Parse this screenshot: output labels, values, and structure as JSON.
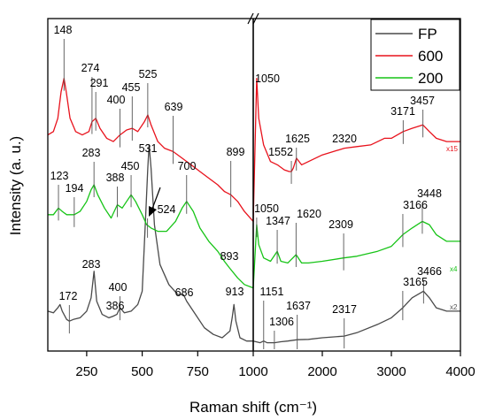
{
  "chart_data": {
    "type": "line",
    "xlabel": "Raman shift (cm⁻¹)",
    "ylabel": "Intensity (a. u.)",
    "x_axis_break": true,
    "x_segments": [
      {
        "xlim": [
          75,
          1000
        ],
        "ticks": [
          250,
          500,
          750,
          1000
        ]
      },
      {
        "xlim": [
          1000,
          4000
        ],
        "ticks": [
          2000,
          3000,
          4000
        ]
      }
    ],
    "ylim": [
      0,
      100
    ],
    "grid": false,
    "legend_position": "top-right",
    "colors": {
      "FP": "#4a4a4a",
      "600": "#e8121c",
      "200": "#17c417"
    },
    "series": [
      {
        "name": "FP",
        "scale_label": "x2",
        "points": [
          [
            75,
            12
          ],
          [
            100,
            11.5
          ],
          [
            120,
            13
          ],
          [
            130,
            14
          ],
          [
            140,
            12
          ],
          [
            160,
            9.5
          ],
          [
            172,
            9
          ],
          [
            190,
            9.5
          ],
          [
            220,
            10
          ],
          [
            250,
            12
          ],
          [
            270,
            16
          ],
          [
            283,
            24
          ],
          [
            295,
            15
          ],
          [
            320,
            11
          ],
          [
            350,
            10
          ],
          [
            370,
            10.5
          ],
          [
            386,
            11
          ],
          [
            400,
            13
          ],
          [
            420,
            11.5
          ],
          [
            450,
            12
          ],
          [
            480,
            14
          ],
          [
            500,
            18
          ],
          [
            515,
            40
          ],
          [
            525,
            55
          ],
          [
            531,
            62
          ],
          [
            540,
            55
          ],
          [
            555,
            38
          ],
          [
            580,
            26
          ],
          [
            620,
            20
          ],
          [
            660,
            17
          ],
          [
            686,
            17
          ],
          [
            700,
            15
          ],
          [
            740,
            11
          ],
          [
            780,
            7
          ],
          [
            820,
            5
          ],
          [
            860,
            4
          ],
          [
            895,
            6
          ],
          [
            905,
            10
          ],
          [
            913,
            14
          ],
          [
            922,
            9
          ],
          [
            940,
            4
          ],
          [
            970,
            3
          ],
          [
            1000,
            3
          ],
          [
            1100,
            2.5
          ],
          [
            1151,
            3
          ],
          [
            1200,
            2.5
          ],
          [
            1306,
            2.5
          ],
          [
            1400,
            2.8
          ],
          [
            1500,
            3
          ],
          [
            1637,
            3.4
          ],
          [
            1800,
            3.5
          ],
          [
            2000,
            4
          ],
          [
            2317,
            4.5
          ],
          [
            2500,
            5.5
          ],
          [
            2800,
            8
          ],
          [
            3000,
            10
          ],
          [
            3165,
            13
          ],
          [
            3300,
            16
          ],
          [
            3466,
            18
          ],
          [
            3550,
            16
          ],
          [
            3650,
            13
          ],
          [
            3800,
            12
          ],
          [
            4000,
            12
          ]
        ]
      },
      {
        "name": "600",
        "scale_label": "x15",
        "points": [
          [
            75,
            65
          ],
          [
            100,
            66
          ],
          [
            120,
            70
          ],
          [
            135,
            78
          ],
          [
            148,
            82
          ],
          [
            158,
            78
          ],
          [
            175,
            70
          ],
          [
            200,
            66
          ],
          [
            230,
            65
          ],
          [
            260,
            66
          ],
          [
            274,
            69
          ],
          [
            291,
            70
          ],
          [
            310,
            67
          ],
          [
            340,
            64
          ],
          [
            370,
            63
          ],
          [
            400,
            65
          ],
          [
            430,
            66.5
          ],
          [
            455,
            67
          ],
          [
            480,
            66
          ],
          [
            510,
            69
          ],
          [
            525,
            71
          ],
          [
            540,
            68
          ],
          [
            570,
            63
          ],
          [
            600,
            61
          ],
          [
            639,
            60
          ],
          [
            680,
            58
          ],
          [
            720,
            56
          ],
          [
            760,
            54
          ],
          [
            800,
            52
          ],
          [
            840,
            50
          ],
          [
            870,
            48
          ],
          [
            899,
            47
          ],
          [
            930,
            45
          ],
          [
            960,
            42
          ],
          [
            1000,
            39
          ],
          [
            1050,
            82
          ],
          [
            1080,
            70
          ],
          [
            1150,
            62
          ],
          [
            1250,
            57
          ],
          [
            1350,
            56
          ],
          [
            1450,
            54.5
          ],
          [
            1520,
            54
          ],
          [
            1552,
            54
          ],
          [
            1580,
            55
          ],
          [
            1625,
            58
          ],
          [
            1700,
            56
          ],
          [
            1800,
            57
          ],
          [
            2000,
            59
          ],
          [
            2320,
            61
          ],
          [
            2500,
            61.5
          ],
          [
            2700,
            62
          ],
          [
            2900,
            64
          ],
          [
            3000,
            64
          ],
          [
            3171,
            66
          ],
          [
            3300,
            67
          ],
          [
            3457,
            68
          ],
          [
            3550,
            66
          ],
          [
            3650,
            64
          ],
          [
            3800,
            63
          ],
          [
            4000,
            63
          ]
        ]
      },
      {
        "name": "200",
        "scale_label": "x4",
        "points": [
          [
            75,
            41
          ],
          [
            100,
            41
          ],
          [
            123,
            43
          ],
          [
            140,
            42
          ],
          [
            160,
            41
          ],
          [
            194,
            41
          ],
          [
            220,
            42
          ],
          [
            250,
            45
          ],
          [
            270,
            48.5
          ],
          [
            283,
            50
          ],
          [
            300,
            47
          ],
          [
            330,
            43
          ],
          [
            360,
            40
          ],
          [
            388,
            44
          ],
          [
            410,
            43
          ],
          [
            430,
            45
          ],
          [
            450,
            47
          ],
          [
            470,
            45
          ],
          [
            500,
            41
          ],
          [
            520,
            38
          ],
          [
            540,
            37
          ],
          [
            570,
            36
          ],
          [
            610,
            36
          ],
          [
            650,
            39
          ],
          [
            680,
            43
          ],
          [
            700,
            45
          ],
          [
            730,
            42
          ],
          [
            760,
            37
          ],
          [
            800,
            33
          ],
          [
            840,
            30
          ],
          [
            870,
            27
          ],
          [
            893,
            25
          ],
          [
            930,
            22
          ],
          [
            960,
            20
          ],
          [
            1000,
            19
          ],
          [
            1050,
            38
          ],
          [
            1080,
            32
          ],
          [
            1150,
            28
          ],
          [
            1250,
            27
          ],
          [
            1347,
            30
          ],
          [
            1400,
            27
          ],
          [
            1500,
            26.5
          ],
          [
            1620,
            29
          ],
          [
            1700,
            26.5
          ],
          [
            1800,
            26.5
          ],
          [
            2000,
            27
          ],
          [
            2309,
            28
          ],
          [
            2500,
            28.5
          ],
          [
            2800,
            30
          ],
          [
            3000,
            31.5
          ],
          [
            3166,
            35
          ],
          [
            3300,
            37
          ],
          [
            3448,
            39
          ],
          [
            3550,
            38
          ],
          [
            3650,
            35
          ],
          [
            3800,
            33
          ],
          [
            4000,
            33
          ]
        ]
      }
    ],
    "annotations": [
      {
        "text": "148",
        "series": "600",
        "x": 148
      },
      {
        "text": "274",
        "series": "600",
        "x": 274
      },
      {
        "text": "291",
        "series": "600",
        "x": 291
      },
      {
        "text": "400",
        "series": "600",
        "x": 400
      },
      {
        "text": "455",
        "series": "600",
        "x": 455
      },
      {
        "text": "525",
        "series": "600",
        "x": 525
      },
      {
        "text": "639",
        "series": "600",
        "x": 639
      },
      {
        "text": "899",
        "series": "600",
        "x": 899
      },
      {
        "text": "1050",
        "series": "600",
        "x": 1050
      },
      {
        "text": "1552",
        "series": "600",
        "x": 1552
      },
      {
        "text": "1625",
        "series": "600",
        "x": 1625
      },
      {
        "text": "2320",
        "series": "600",
        "x": 2320
      },
      {
        "text": "3171",
        "series": "600",
        "x": 3171
      },
      {
        "text": "3457",
        "series": "600",
        "x": 3457
      },
      {
        "text": "123",
        "series": "200",
        "x": 123
      },
      {
        "text": "194",
        "series": "200",
        "x": 194
      },
      {
        "text": "283",
        "series": "200",
        "x": 283
      },
      {
        "text": "388",
        "series": "200",
        "x": 388
      },
      {
        "text": "450",
        "series": "200",
        "x": 450
      },
      {
        "text": "524",
        "series": "200",
        "x": 524
      },
      {
        "text": "700",
        "series": "200",
        "x": 700
      },
      {
        "text": "893",
        "series": "200",
        "x": 893
      },
      {
        "text": "1050",
        "series": "200",
        "x": 1050
      },
      {
        "text": "1347",
        "series": "200",
        "x": 1347
      },
      {
        "text": "1620",
        "series": "200",
        "x": 1620
      },
      {
        "text": "2309",
        "series": "200",
        "x": 2309
      },
      {
        "text": "3166",
        "series": "200",
        "x": 3166
      },
      {
        "text": "3448",
        "series": "200",
        "x": 3448
      },
      {
        "text": "531",
        "series": "FP",
        "x": 531
      },
      {
        "text": "172",
        "series": "FP",
        "x": 172
      },
      {
        "text": "283",
        "series": "FP",
        "x": 283
      },
      {
        "text": "400",
        "series": "FP",
        "x": 400
      },
      {
        "text": "386",
        "series": "FP",
        "x": 386
      },
      {
        "text": "686",
        "series": "FP",
        "x": 686
      },
      {
        "text": "913",
        "series": "FP",
        "x": 913
      },
      {
        "text": "1151",
        "series": "FP",
        "x": 1151
      },
      {
        "text": "1306",
        "series": "FP",
        "x": 1306
      },
      {
        "text": "1637",
        "series": "FP",
        "x": 1637
      },
      {
        "text": "2317",
        "series": "FP",
        "x": 2317
      },
      {
        "text": "3165",
        "series": "FP",
        "x": 3165
      },
      {
        "text": "3466",
        "series": "FP",
        "x": 3466
      }
    ]
  }
}
